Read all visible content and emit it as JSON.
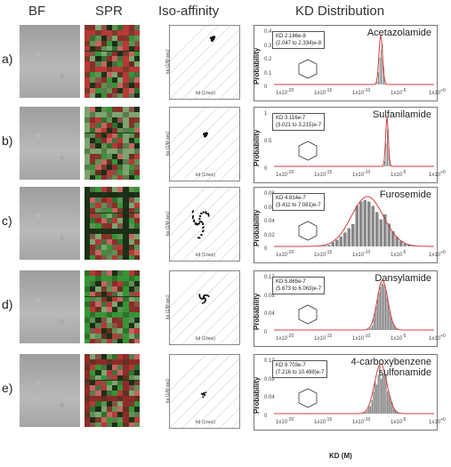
{
  "headers": {
    "bf": "BF",
    "spr": "SPR",
    "iso": "Iso-affinity",
    "kd": "KD Distribution"
  },
  "iso_axis": {
    "x": "kd (1/sec)",
    "y": "ka (1/M sec)"
  },
  "kd_axis": {
    "y": "Probability",
    "x": "KD (M)"
  },
  "kd_ticks": [
    "-20",
    "-15",
    "-10",
    "-5",
    "+0"
  ],
  "panels": [
    {
      "label": "a)",
      "compound": "Acetazolamide",
      "kd": "KD 2.186e-8",
      "ci": "(2.047 to 2.334)e-8",
      "yticks": [
        "0.4",
        "0.3",
        "0.2",
        "0.1",
        "0"
      ]
    },
    {
      "label": "b)",
      "compound": "Sulfanilamide",
      "kd": "KD 3.116e-7",
      "ci": "(3.021 to 3.215)e-7",
      "yticks": [
        "1",
        "0.5",
        "0"
      ]
    },
    {
      "label": "c)",
      "compound": "Furosemide",
      "kd": "KD 4.914e-7",
      "ci": "(3.411 to 7.081)e-7",
      "yticks": [
        "0.08",
        "0.06",
        "0.04",
        "0.02",
        "0"
      ]
    },
    {
      "label": "d)",
      "compound": "Dansylamide",
      "kd": "KD 5.865e-7",
      "ci": "(5.673 to 6.063)e-7",
      "yticks": [
        "0.12",
        "0.08",
        "0.04",
        "0"
      ]
    },
    {
      "label": "e)",
      "compound": "4-carboxybenzene\nsulfonamide",
      "kd": "KD 8.703e-7",
      "ci": "(7.216 to 10.498)e-7",
      "yticks": [
        "0.12",
        "0.08",
        "0.04",
        "0"
      ]
    }
  ]
}
